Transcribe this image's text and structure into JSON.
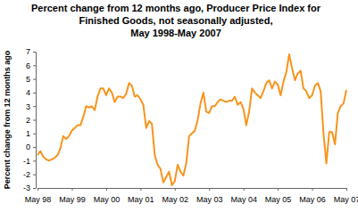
{
  "chart_data": {
    "type": "line",
    "title": [
      "Percent change from 12 months ago, Producer Price Index for",
      "Finished Goods, not seasonally adjusted,",
      "May 1998-May 2007"
    ],
    "y_label": "Percent change from 12 months ago",
    "color": "#f7941d",
    "grid": false,
    "categories": [
      "May 98",
      null,
      null,
      null,
      null,
      null,
      null,
      null,
      null,
      null,
      null,
      null,
      "May 99",
      null,
      null,
      null,
      null,
      null,
      null,
      null,
      null,
      null,
      null,
      null,
      "May 00",
      null,
      null,
      null,
      null,
      null,
      null,
      null,
      null,
      null,
      null,
      null,
      "May 01",
      null,
      null,
      null,
      null,
      null,
      null,
      null,
      null,
      null,
      null,
      null,
      "May 02",
      null,
      null,
      null,
      null,
      null,
      null,
      null,
      null,
      null,
      null,
      null,
      "May 03",
      null,
      null,
      null,
      null,
      null,
      null,
      null,
      null,
      null,
      null,
      null,
      "May 04",
      null,
      null,
      null,
      null,
      null,
      null,
      null,
      null,
      null,
      null,
      null,
      "May 05",
      null,
      null,
      null,
      null,
      null,
      null,
      null,
      null,
      null,
      null,
      null,
      "May 06",
      null,
      null,
      null,
      null,
      null,
      null,
      null,
      null,
      null,
      null,
      null,
      "May 07"
    ],
    "values": [
      -0.6,
      -0.3,
      -0.7,
      -0.9,
      -1.0,
      -0.9,
      -0.8,
      -0.6,
      -0.1,
      0.8,
      0.6,
      0.8,
      1.2,
      1.4,
      1.6,
      1.6,
      2.2,
      3.0,
      2.9,
      3.0,
      2.7,
      3.7,
      4.3,
      4.3,
      3.8,
      4.3,
      4.0,
      3.3,
      3.7,
      3.7,
      3.6,
      3.9,
      4.7,
      4.5,
      3.7,
      3.8,
      3.5,
      3.1,
      1.4,
      1.9,
      1.7,
      -0.6,
      -1.3,
      -1.6,
      -2.6,
      -2.2,
      -1.8,
      -2.8,
      -2.5,
      -1.3,
      -1.8,
      -2.1,
      -1.2,
      0.8,
      1.0,
      1.2,
      2.0,
      3.2,
      4.0,
      2.6,
      2.5,
      3.0,
      3.0,
      3.3,
      3.5,
      3.4,
      3.3,
      3.4,
      3.4,
      3.7,
      3.1,
      3.3,
      2.8,
      1.6,
      2.6,
      4.3,
      4.0,
      3.8,
      3.6,
      4.1,
      4.7,
      4.9,
      4.3,
      4.8,
      4.6,
      3.8,
      4.8,
      5.5,
      6.8,
      5.8,
      4.9,
      5.4,
      5.6,
      4.3,
      4.1,
      3.6,
      3.8,
      4.5,
      4.7,
      4.1,
      1.0,
      -1.2,
      1.1,
      1.1,
      0.2,
      2.5,
      3.0,
      3.2,
      4.2
    ],
    "ylim": [
      -3,
      7
    ],
    "yticks": [
      -3,
      -2,
      -1,
      0,
      1,
      2,
      3,
      4,
      5,
      6,
      7
    ]
  }
}
